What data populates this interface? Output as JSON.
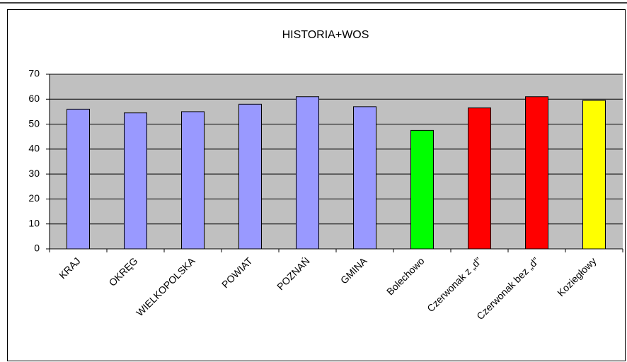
{
  "chart_data": {
    "type": "bar",
    "title": "HISTORIA+WOS",
    "categories": [
      "KRAJ",
      "OKRĘG",
      "WIELKOPOLSKA",
      "POWIAT",
      "POZNAŃ",
      "GMINA",
      "Bolechowo",
      "Czerwonak z „d”",
      "Czerwonak bez „d”",
      "Koziegłowy"
    ],
    "values": [
      56,
      54.5,
      55,
      58,
      61,
      57,
      47.5,
      56.5,
      61,
      59.5
    ],
    "colors": [
      "#9999ff",
      "#9999ff",
      "#9999ff",
      "#9999ff",
      "#9999ff",
      "#9999ff",
      "#00ff00",
      "#ff0000",
      "#ff0000",
      "#ffff00"
    ],
    "ylim": [
      0,
      70
    ],
    "yticks": [
      0,
      10,
      20,
      30,
      40,
      50,
      60,
      70
    ],
    "grid": true
  }
}
